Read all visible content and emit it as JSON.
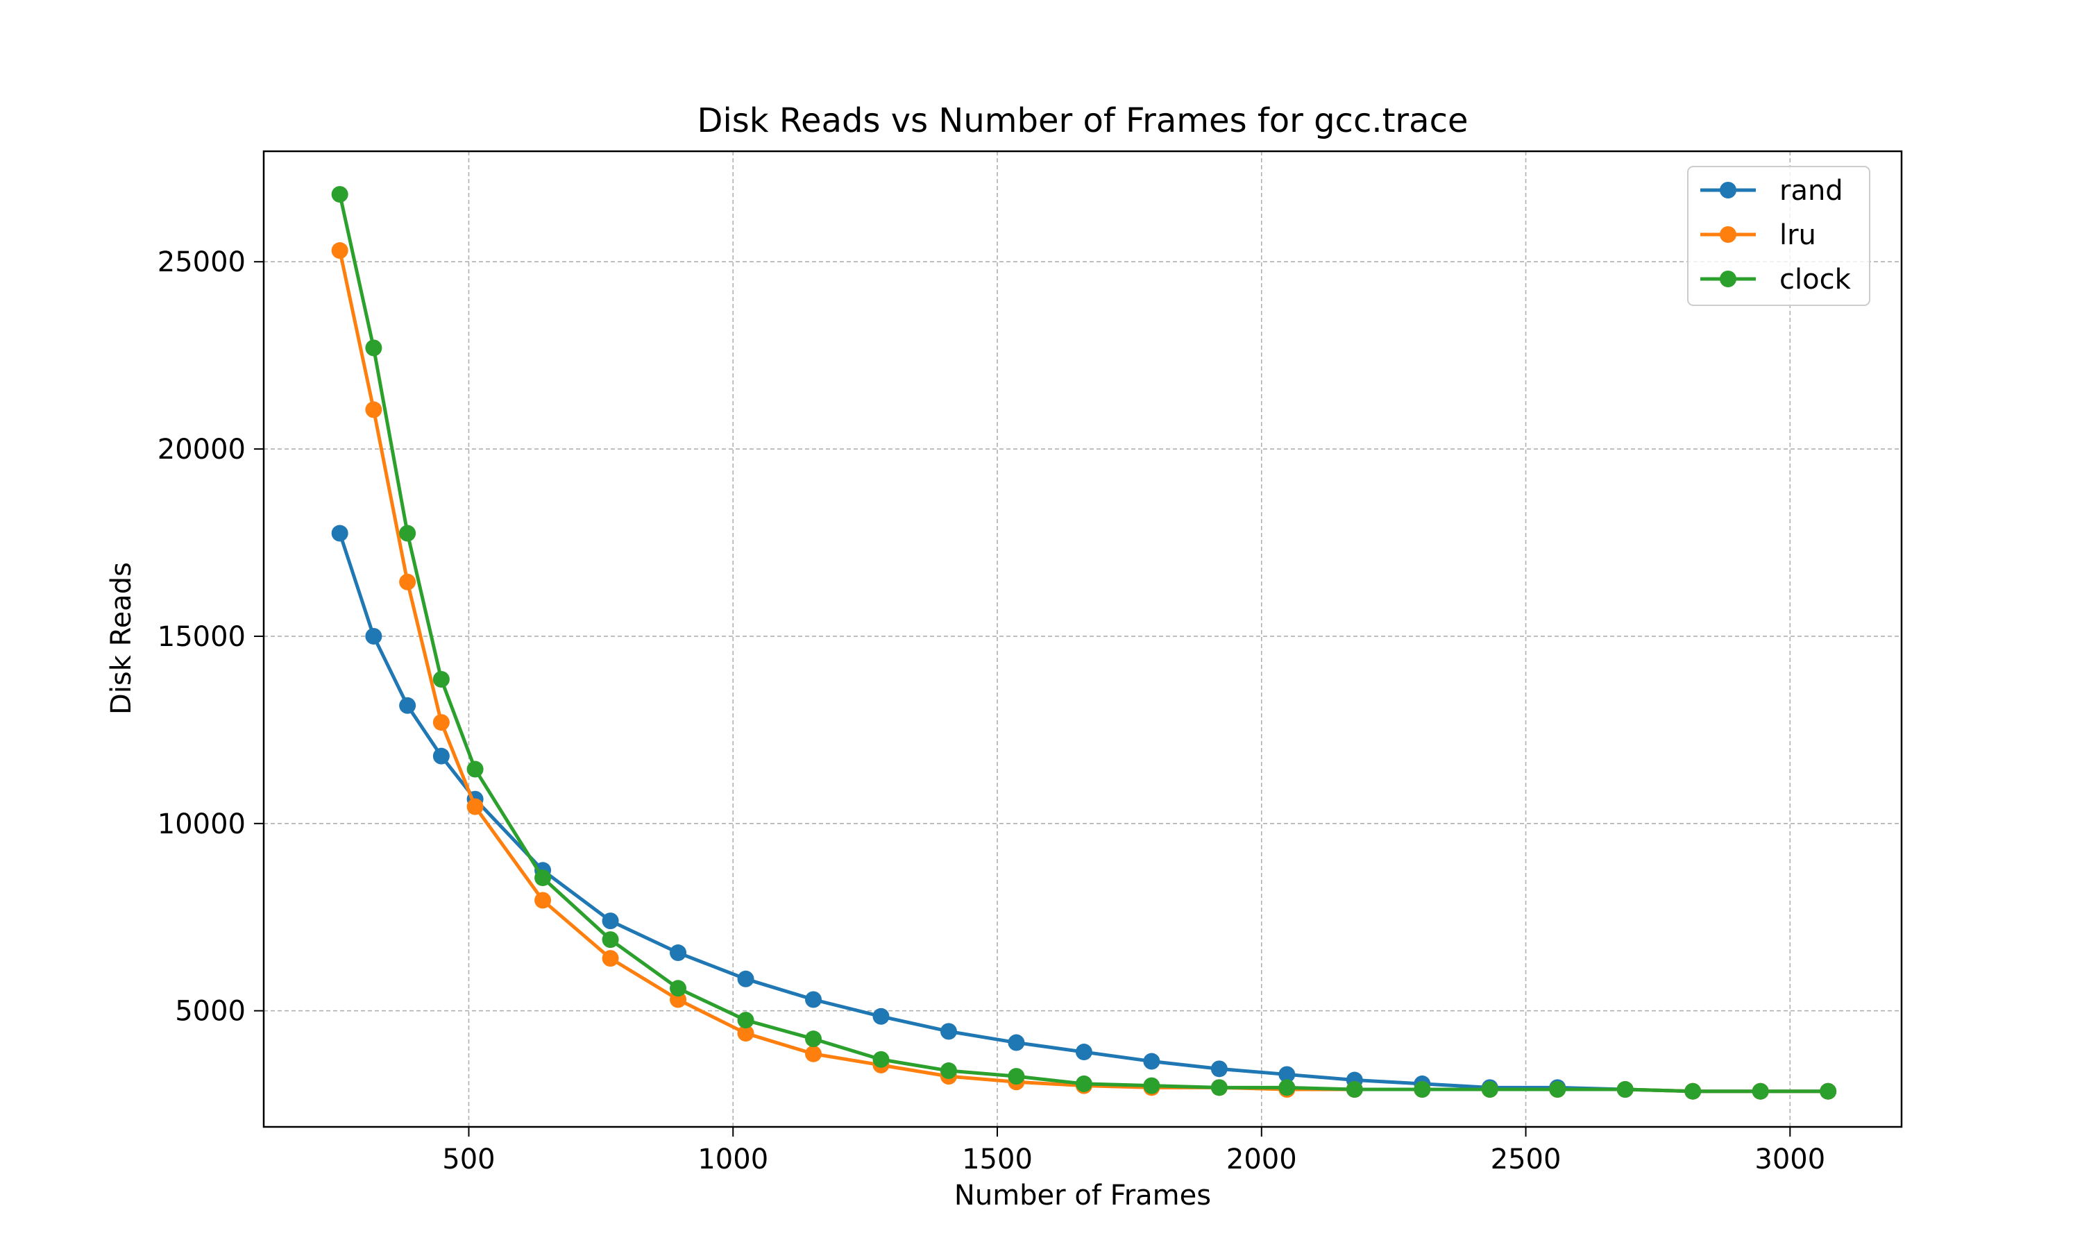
{
  "chart_data": {
    "type": "line",
    "title": "Disk Reads vs Number of Frames for gcc.trace",
    "xlabel": "Number of Frames",
    "ylabel": "Disk Reads",
    "xlim": [
      112,
      3211
    ],
    "ylim": [
      1900,
      27950
    ],
    "xticks": [
      500,
      1000,
      1500,
      2000,
      2500,
      3000
    ],
    "yticks": [
      5000,
      10000,
      15000,
      20000,
      25000
    ],
    "grid": true,
    "legend_position": "top-right",
    "x": [
      256,
      320,
      384,
      448,
      512,
      640,
      768,
      896,
      1024,
      1152,
      1280,
      1408,
      1536,
      1664,
      1792,
      1920,
      2048,
      2176,
      2304,
      2432,
      2560,
      2688,
      2816,
      2944,
      3072
    ],
    "series": [
      {
        "name": "rand",
        "color": "#1f77b4",
        "values": [
          17750,
          15000,
          13150,
          11800,
          10650,
          8750,
          7400,
          6550,
          5850,
          5300,
          4850,
          4450,
          4150,
          3900,
          3650,
          3450,
          3300,
          3150,
          3050,
          2950,
          2950,
          2900,
          2850,
          2850,
          2850
        ]
      },
      {
        "name": "lru",
        "color": "#ff7f0e",
        "values": [
          25300,
          21050,
          16450,
          12700,
          10450,
          7950,
          6400,
          5300,
          4400,
          3850,
          3550,
          3250,
          3100,
          3000,
          2950,
          2950,
          2900,
          2900,
          2900,
          2900,
          2900,
          2900,
          2850,
          2850,
          2850
        ]
      },
      {
        "name": "clock",
        "color": "#2ca02c",
        "values": [
          26800,
          22700,
          17750,
          13850,
          11450,
          8550,
          6900,
          5600,
          4750,
          4250,
          3700,
          3400,
          3250,
          3050,
          3000,
          2950,
          2950,
          2900,
          2900,
          2900,
          2900,
          2900,
          2850,
          2850,
          2850
        ]
      }
    ]
  }
}
